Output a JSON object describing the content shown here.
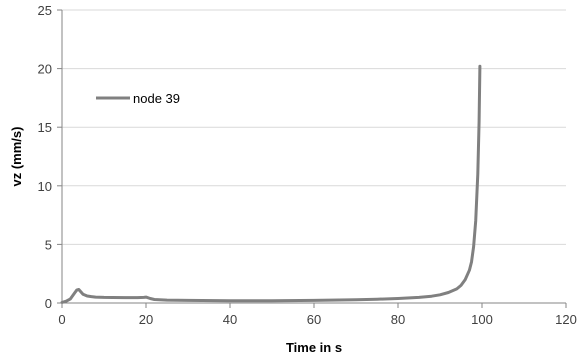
{
  "chart_data": {
    "type": "line",
    "xlabel": "Time in s",
    "ylabel": "vz (mm/s)",
    "xlim": [
      0,
      120
    ],
    "ylim": [
      0,
      25
    ],
    "x_ticks": [
      0,
      20,
      40,
      60,
      80,
      100,
      120
    ],
    "y_ticks": [
      0,
      5,
      10,
      15,
      20,
      25
    ],
    "grid": "horizontal",
    "legend_position": "upper-left",
    "series": [
      {
        "name": "node 39",
        "color": "#808080",
        "x": [
          0,
          1,
          2,
          3,
          3.5,
          4,
          4.5,
          5,
          6,
          7,
          8,
          10,
          12,
          15,
          18,
          19.5,
          20,
          21,
          22,
          25,
          30,
          40,
          50,
          60,
          70,
          75,
          80,
          85,
          88,
          90,
          92,
          94,
          95,
          96,
          97,
          97.5,
          98,
          98.5,
          99,
          99.3,
          99.5
        ],
        "y": [
          0.05,
          0.15,
          0.35,
          0.85,
          1.1,
          1.15,
          0.95,
          0.75,
          0.6,
          0.55,
          0.5,
          0.48,
          0.47,
          0.46,
          0.46,
          0.48,
          0.5,
          0.38,
          0.3,
          0.25,
          0.22,
          0.2,
          0.2,
          0.22,
          0.28,
          0.32,
          0.38,
          0.48,
          0.58,
          0.7,
          0.9,
          1.2,
          1.5,
          2.0,
          2.8,
          3.5,
          4.8,
          7.0,
          11.0,
          15.5,
          20.2
        ]
      }
    ]
  }
}
